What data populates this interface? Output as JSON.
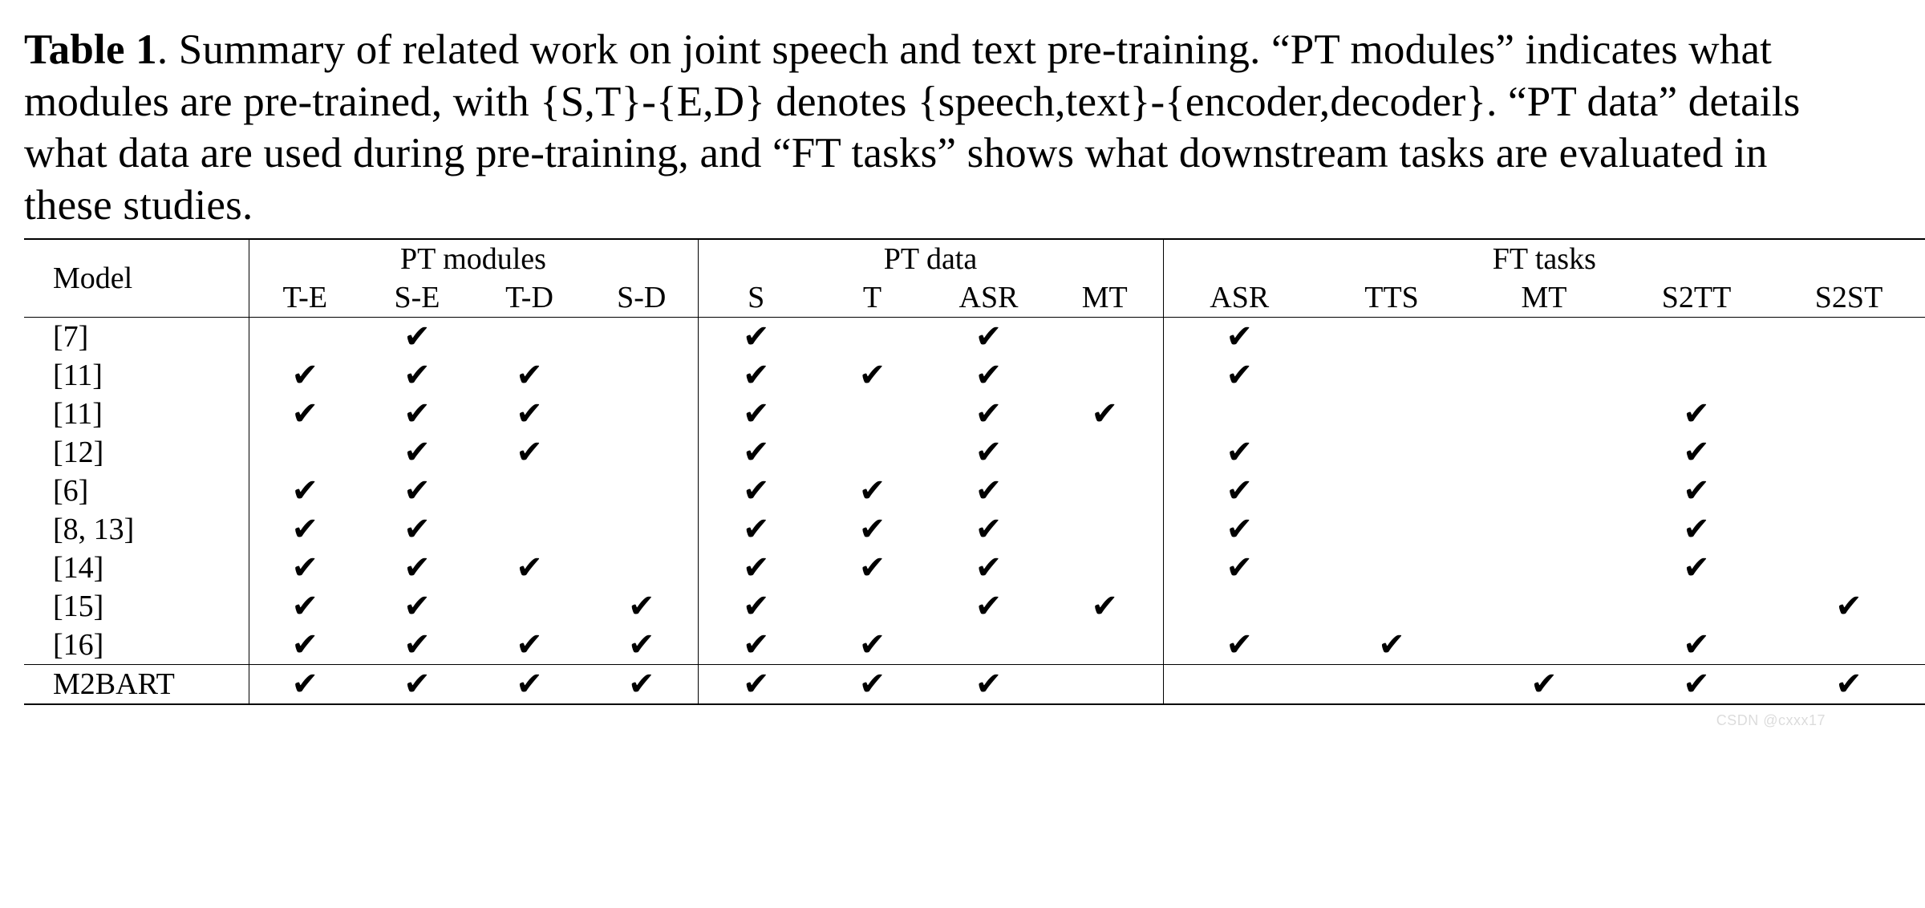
{
  "caption": {
    "label": "Table 1",
    "text_after_label": ".  Summary of related work on joint speech and text pre-training. “PT modules” indicates what modules are pre-trained, with {S,T}-{E,D} denotes {speech,text}-{encoder,decoder}. “PT data” details what data are used during pre-training, and “FT tasks” shows what downstream tasks are evaluated in these studies."
  },
  "table": {
    "type": "table",
    "check_glyph": "✔",
    "colors": {
      "text": "#000000",
      "background": "#ffffff",
      "rule": "#000000"
    },
    "fonts": {
      "caption_pt": 40,
      "header_pt": 28,
      "cell_pt": 28,
      "family": "Times New Roman"
    },
    "groups": [
      {
        "key": "model",
        "label": "Model",
        "span": 1
      },
      {
        "key": "ptm",
        "label": "PT modules",
        "span": 4
      },
      {
        "key": "ptd",
        "label": "PT data",
        "span": 4
      },
      {
        "key": "ft",
        "label": "FT tasks",
        "span": 5
      }
    ],
    "subcolumns": {
      "ptm": [
        "T-E",
        "S-E",
        "T-D",
        "S-D"
      ],
      "ptd": [
        "S",
        "T",
        "ASR",
        "MT"
      ],
      "ft": [
        "ASR",
        "TTS",
        "MT",
        "S2TT",
        "S2ST"
      ]
    },
    "rows": [
      {
        "model": "[7]",
        "ptm": [
          0,
          1,
          0,
          0
        ],
        "ptd": [
          1,
          0,
          1,
          0
        ],
        "ft": [
          1,
          0,
          0,
          0,
          0
        ]
      },
      {
        "model": "[11]",
        "ptm": [
          1,
          1,
          1,
          0
        ],
        "ptd": [
          1,
          1,
          1,
          0
        ],
        "ft": [
          1,
          0,
          0,
          0,
          0
        ]
      },
      {
        "model": "[11]",
        "ptm": [
          1,
          1,
          1,
          0
        ],
        "ptd": [
          1,
          0,
          1,
          1
        ],
        "ft": [
          0,
          0,
          0,
          1,
          0
        ]
      },
      {
        "model": "[12]",
        "ptm": [
          0,
          1,
          1,
          0
        ],
        "ptd": [
          1,
          0,
          1,
          0
        ],
        "ft": [
          1,
          0,
          0,
          1,
          0
        ]
      },
      {
        "model": "[6]",
        "ptm": [
          1,
          1,
          0,
          0
        ],
        "ptd": [
          1,
          1,
          1,
          0
        ],
        "ft": [
          1,
          0,
          0,
          1,
          0
        ]
      },
      {
        "model": "[8, 13]",
        "ptm": [
          1,
          1,
          0,
          0
        ],
        "ptd": [
          1,
          1,
          1,
          0
        ],
        "ft": [
          1,
          0,
          0,
          1,
          0
        ]
      },
      {
        "model": "[14]",
        "ptm": [
          1,
          1,
          1,
          0
        ],
        "ptd": [
          1,
          1,
          1,
          0
        ],
        "ft": [
          1,
          0,
          0,
          1,
          0
        ]
      },
      {
        "model": "[15]",
        "ptm": [
          1,
          1,
          0,
          1
        ],
        "ptd": [
          1,
          0,
          1,
          1
        ],
        "ft": [
          0,
          0,
          0,
          0,
          1
        ]
      },
      {
        "model": "[16]",
        "ptm": [
          1,
          1,
          1,
          1
        ],
        "ptd": [
          1,
          1,
          0,
          0
        ],
        "ft": [
          1,
          1,
          0,
          1,
          0
        ]
      },
      {
        "model": "M2BART",
        "ptm": [
          1,
          1,
          1,
          1
        ],
        "ptd": [
          1,
          1,
          1,
          0
        ],
        "ft": [
          0,
          0,
          1,
          1,
          1
        ]
      }
    ],
    "rule_after_row_index": 8
  },
  "watermark": "CSDN @cxxx17"
}
